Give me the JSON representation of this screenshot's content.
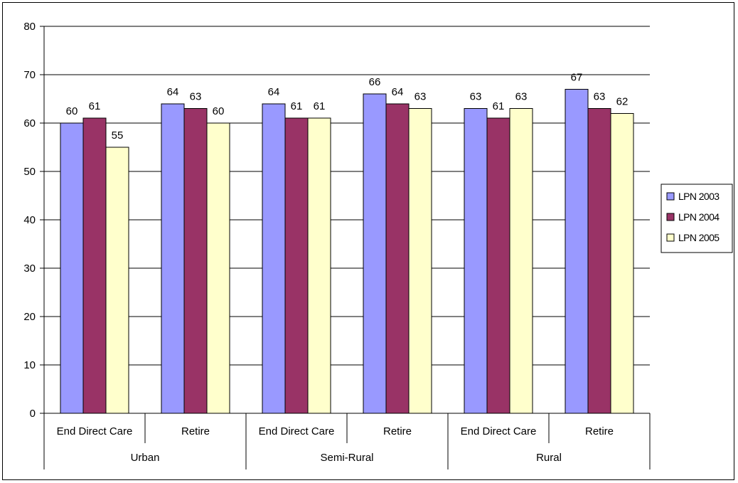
{
  "chart_data": {
    "type": "bar",
    "title": "",
    "xlabel": "",
    "ylabel": "",
    "ylim": [
      0,
      80
    ],
    "yticks": [
      0,
      10,
      20,
      30,
      40,
      50,
      60,
      70,
      80
    ],
    "grid": "horizontal major gridlines on",
    "legend_position": "right",
    "groups": [
      {
        "label": "Urban",
        "categories": [
          "End Direct Care",
          "Retire"
        ]
      },
      {
        "label": "Semi-Rural",
        "categories": [
          "End Direct Care",
          "Retire"
        ]
      },
      {
        "label": "Rural",
        "categories": [
          "End Direct Care",
          "Retire"
        ]
      }
    ],
    "categories": [
      "End Direct Care",
      "Retire",
      "End Direct Care",
      "Retire",
      "End Direct Care",
      "Retire"
    ],
    "series": [
      {
        "name": "LPN 2003",
        "color": "#9999FF",
        "values": [
          60,
          64,
          64,
          66,
          63,
          67
        ]
      },
      {
        "name": "LPN 2004",
        "color": "#993366",
        "values": [
          61,
          63,
          61,
          64,
          61,
          63
        ]
      },
      {
        "name": "LPN 2005",
        "color": "#FFFFCC",
        "values": [
          55,
          60,
          61,
          63,
          63,
          62
        ]
      }
    ]
  }
}
